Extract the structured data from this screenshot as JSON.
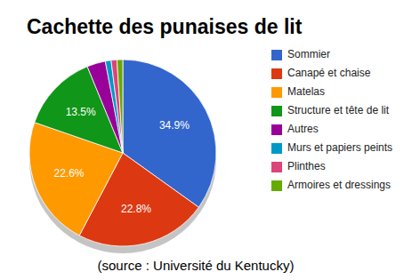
{
  "chart_data": {
    "type": "pie",
    "title": "Cachette des punaises de lit",
    "categories": [
      "Sommier",
      "Canapé et chaise",
      "Matelas",
      "Structure et tête de lit",
      "Autres",
      "Murs et papiers peints",
      "Plinthes",
      "Armoires et dressings"
    ],
    "values": [
      34.9,
      22.8,
      22.6,
      13.5,
      3.2,
      1.0,
      1.0,
      1.0
    ],
    "value_labels": [
      "34.9%",
      "22.8%",
      "22.6%",
      "13.5%",
      null,
      null,
      null,
      null
    ],
    "colors": [
      "#3366cc",
      "#dc3912",
      "#ff9900",
      "#109618",
      "#990099",
      "#0099c6",
      "#dd4477",
      "#66aa00"
    ],
    "data_labels": true,
    "legend": "right",
    "annotations": [
      "(source : Université du Kentucky)"
    ]
  }
}
